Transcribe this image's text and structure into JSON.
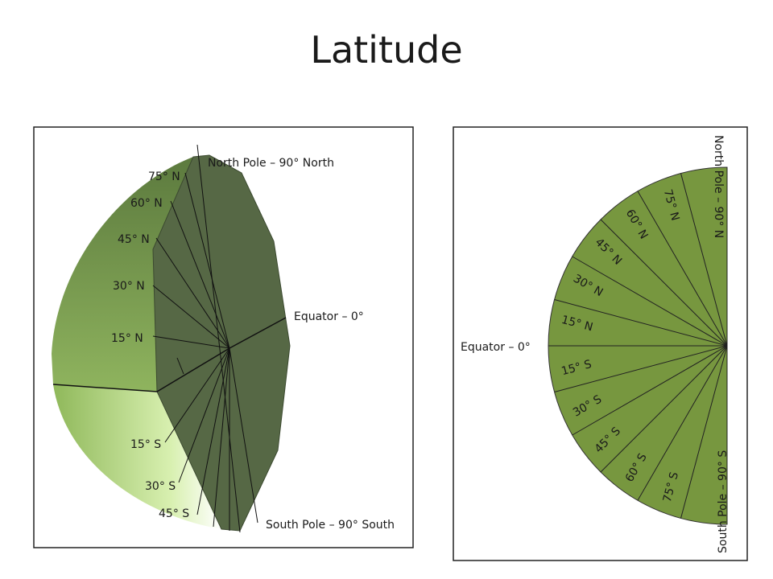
{
  "title": "Latitude",
  "left_panel": {
    "north_pole": "North Pole – 90° North",
    "equator": "Equator – 0°",
    "south_pole": "South Pole – 90° South",
    "north": [
      "15° N",
      "30° N",
      "45° N",
      "60° N",
      "75° N"
    ],
    "south": [
      "15° S",
      "30° S",
      "45° S"
    ]
  },
  "right_panel": {
    "north_pole": "North Pole – 90° N",
    "equator": "Equator – 0°",
    "south_pole": "South Pole – 90° S",
    "north": [
      "15° N",
      "30° N",
      "45° N",
      "60° N",
      "75° N"
    ],
    "south": [
      "15° S",
      "30° S",
      "45° S",
      "60° S",
      "75° S"
    ]
  }
}
